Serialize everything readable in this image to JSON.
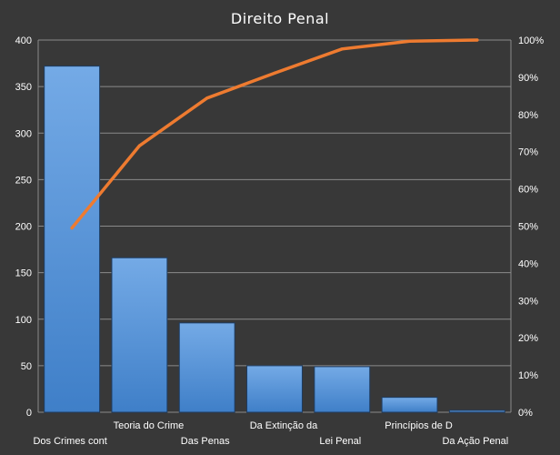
{
  "chart_data": {
    "type": "bar",
    "title": "Direito Penal",
    "categories": [
      "Dos Crimes cont",
      "Teoria do Crime",
      "Das Penas",
      "Da Extinção da",
      "Lei Penal",
      "Princípios de D",
      "Da Ação Penal"
    ],
    "series": [
      {
        "type": "bar",
        "values": [
          372,
          166,
          96,
          50,
          49,
          16,
          2
        ]
      },
      {
        "type": "line",
        "axis": "right",
        "values": [
          0.495,
          0.716,
          0.844,
          0.911,
          0.976,
          0.997,
          1.0
        ]
      }
    ],
    "ylim": [
      0,
      400
    ],
    "yticks": [
      0,
      50,
      100,
      150,
      200,
      250,
      300,
      350,
      400
    ],
    "y2lim": [
      0,
      1
    ],
    "y2ticks": [
      "0%",
      "10%",
      "20%",
      "30%",
      "40%",
      "50%",
      "60%",
      "70%",
      "80%",
      "90%",
      "100%"
    ],
    "grid": true,
    "colors": {
      "bar": "#4f8fd6",
      "bar_light": "#6fa8e6",
      "bar_dark": "#3e7cc4",
      "line": "#ee7b30",
      "grid": "#8a8a8a",
      "background": "#383838",
      "text": "#ffffff"
    }
  }
}
